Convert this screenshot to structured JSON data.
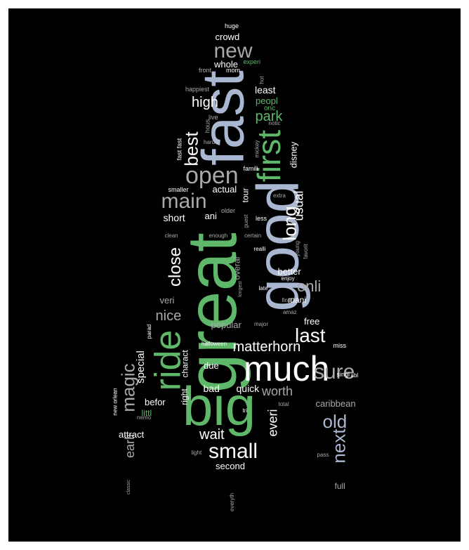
{
  "cloud": {
    "colors": {
      "background": "#000000",
      "frame": "#ffffff"
    },
    "words": [
      {
        "text": "great",
        "color": "#5fb86a"
      },
      {
        "text": "fast",
        "color": "#a9b7d1"
      },
      {
        "text": "good",
        "color": "#a9b7d1"
      },
      {
        "text": "big",
        "color": "#5fb86a"
      },
      {
        "text": "much",
        "color": "#ffffff"
      },
      {
        "text": "ride",
        "color": "#5fb86a"
      },
      {
        "text": "first",
        "color": "#5fb86a"
      },
      {
        "text": "new",
        "color": "#a8a8a8"
      },
      {
        "text": "open",
        "color": "#a8a8a8"
      },
      {
        "text": "best",
        "color": "#ffffff"
      },
      {
        "text": "main",
        "color": "#a8a8a8"
      },
      {
        "text": "small",
        "color": "#ffffff"
      },
      {
        "text": "sure",
        "color": "#a8a8a8"
      },
      {
        "text": "last",
        "color": "#ffffff"
      },
      {
        "text": "long",
        "color": "#ffffff"
      },
      {
        "text": "old",
        "color": "#a9b7d1"
      },
      {
        "text": "next",
        "color": "#a9b7d1"
      },
      {
        "text": "magic",
        "color": "#a8a8a8"
      },
      {
        "text": "close",
        "color": "#ffffff"
      },
      {
        "text": "matterhorn",
        "color": "#ffffff"
      },
      {
        "text": "onli",
        "color": "#a8a8a8"
      },
      {
        "text": "nice",
        "color": "#a8a8a8"
      },
      {
        "text": "high",
        "color": "#ffffff"
      },
      {
        "text": "park",
        "color": "#5fb86a"
      },
      {
        "text": "wait",
        "color": "#ffffff"
      },
      {
        "text": "worth",
        "color": "#a8a8a8"
      },
      {
        "text": "everi",
        "color": "#ffffff"
      },
      {
        "text": "usual",
        "color": "#ffffff"
      },
      {
        "text": "earli",
        "color": "#a8a8a8"
      },
      {
        "text": "crowd",
        "color": "#ffffff"
      },
      {
        "text": "whole",
        "color": "#ffffff"
      },
      {
        "text": "least",
        "color": "#ffffff"
      },
      {
        "text": "peopl",
        "color": "#5fb86a"
      },
      {
        "text": "special",
        "color": "#ffffff"
      },
      {
        "text": "short",
        "color": "#ffffff"
      },
      {
        "text": "actual",
        "color": "#ffffff"
      },
      {
        "text": "ani",
        "color": "#ffffff"
      },
      {
        "text": "tour",
        "color": "#ffffff"
      },
      {
        "text": "disney",
        "color": "#ffffff"
      },
      {
        "text": "better",
        "color": "#ffffff"
      },
      {
        "text": "overal",
        "color": "#a8a8a8"
      },
      {
        "text": "mani",
        "color": "#ffffff"
      },
      {
        "text": "veri",
        "color": "#a8a8a8"
      },
      {
        "text": "free",
        "color": "#ffffff"
      },
      {
        "text": "popular",
        "color": "#a8a8a8"
      },
      {
        "text": "charact",
        "color": "#ffffff"
      },
      {
        "text": "due",
        "color": "#ffffff"
      },
      {
        "text": "bad",
        "color": "#ffffff"
      },
      {
        "text": "quick",
        "color": "#ffffff"
      },
      {
        "text": "right",
        "color": "#ffffff"
      },
      {
        "text": "befor",
        "color": "#ffffff"
      },
      {
        "text": "littl",
        "color": "#5fb86a"
      },
      {
        "text": "attract",
        "color": "#ffffff"
      },
      {
        "text": "second",
        "color": "#ffffff"
      },
      {
        "text": "caribbean",
        "color": "#a8a8a8"
      },
      {
        "text": "full",
        "color": "#a8a8a8"
      },
      {
        "text": "huge",
        "color": "#ffffff"
      },
      {
        "text": "experi",
        "color": "#5fb86a"
      },
      {
        "text": "front",
        "color": "#a8a8a8"
      },
      {
        "text": "mom",
        "color": "#ffffff"
      },
      {
        "text": "happiest",
        "color": "#a8a8a8"
      },
      {
        "text": "hot",
        "color": "#a8a8a8"
      },
      {
        "text": "onc",
        "color": "#5fb86a"
      },
      {
        "text": "live",
        "color": "#a8a8a8"
      },
      {
        "text": "hous",
        "color": "#a8a8a8"
      },
      {
        "text": "notic",
        "color": "#a8a8a8"
      },
      {
        "text": "fast fast",
        "color": "#ffffff"
      },
      {
        "text": "hard",
        "color": "#a8a8a8"
      },
      {
        "text": "mickey",
        "color": "#a8a8a8"
      },
      {
        "text": "famili",
        "color": "#ffffff"
      },
      {
        "text": "extra",
        "color": "#a8a8a8"
      },
      {
        "text": "smaller",
        "color": "#ffffff"
      },
      {
        "text": "older",
        "color": "#a8a8a8"
      },
      {
        "text": "guest",
        "color": "#a8a8a8"
      },
      {
        "text": "less",
        "color": "#ffffff"
      },
      {
        "text": "clean",
        "color": "#a8a8a8"
      },
      {
        "text": "enough",
        "color": "#a8a8a8"
      },
      {
        "text": "certain",
        "color": "#a8a8a8"
      },
      {
        "text": "realli",
        "color": "#ffffff"
      },
      {
        "text": "young",
        "color": "#a8a8a8"
      },
      {
        "text": "favorit",
        "color": "#a8a8a8"
      },
      {
        "text": "enjoy",
        "color": "#ffffff"
      },
      {
        "text": "longest",
        "color": "#a8a8a8"
      },
      {
        "text": "late",
        "color": "#ffffff"
      },
      {
        "text": "final",
        "color": "#a8a8a8"
      },
      {
        "text": "amaz",
        "color": "#a8a8a8"
      },
      {
        "text": "major",
        "color": "#a8a8a8"
      },
      {
        "text": "parad",
        "color": "#ffffff"
      },
      {
        "text": "halloween",
        "color": "#ffffff"
      },
      {
        "text": "miss",
        "color": "#ffffff"
      },
      {
        "text": "singl",
        "color": "#ffffff"
      },
      {
        "text": "abl",
        "color": "#ffffff"
      },
      {
        "text": "new orlean",
        "color": "#ffffff"
      },
      {
        "text": "nemo",
        "color": "#a8a8a8"
      },
      {
        "text": "tri",
        "color": "#ffffff"
      },
      {
        "text": "total",
        "color": "#a8a8a8"
      },
      {
        "text": "light",
        "color": "#a8a8a8"
      },
      {
        "text": "pass",
        "color": "#a8a8a8"
      },
      {
        "text": "classic",
        "color": "#a8a8a8"
      },
      {
        "text": "everyth",
        "color": "#a8a8a8"
      }
    ]
  }
}
